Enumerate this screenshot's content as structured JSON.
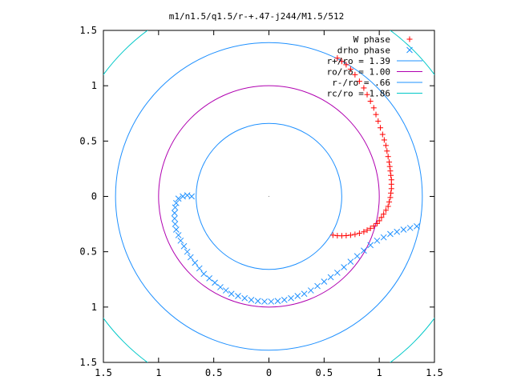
{
  "chart_data": {
    "type": "scatter",
    "title": "m1/n1.5/q1.5/r-+.47-j244/M1.5/512",
    "xlabel": "",
    "ylabel": "",
    "xlim": [
      -1.5,
      1.5
    ],
    "ylim": [
      -1.5,
      1.5
    ],
    "x_ticks": [
      -1.5,
      -1,
      -0.5,
      0,
      0.5,
      1,
      1.5
    ],
    "y_ticks": [
      -1.5,
      -1,
      -0.5,
      0,
      0.5,
      1,
      1.5
    ],
    "x_tick_labels": [
      "1.5",
      "1",
      "0.5",
      "0",
      "0.5",
      "1",
      "1.5"
    ],
    "y_tick_labels": [
      "1.5",
      "1",
      "0.5",
      "0",
      "0.5",
      "1",
      "1.5"
    ],
    "grid": false,
    "legend_position": "top-right",
    "series": [
      {
        "name": "W phase",
        "kind": "points",
        "marker": "plus",
        "color": "#ff0000",
        "points": [
          [
            0.58,
            -0.35
          ],
          [
            0.62,
            -0.355
          ],
          [
            0.66,
            -0.356
          ],
          [
            0.7,
            -0.354
          ],
          [
            0.74,
            -0.35
          ],
          [
            0.78,
            -0.343
          ],
          [
            0.82,
            -0.333
          ],
          [
            0.86,
            -0.32
          ],
          [
            0.89,
            -0.305
          ],
          [
            0.92,
            -0.288
          ],
          [
            0.95,
            -0.268
          ],
          [
            0.98,
            -0.245
          ],
          [
            1.0,
            -0.22
          ],
          [
            1.02,
            -0.19
          ],
          [
            1.04,
            -0.16
          ],
          [
            1.06,
            -0.125
          ],
          [
            1.08,
            -0.09
          ],
          [
            1.09,
            -0.05
          ],
          [
            1.1,
            -0.01
          ],
          [
            1.105,
            0.03
          ],
          [
            1.11,
            0.07
          ],
          [
            1.11,
            0.11
          ],
          [
            1.11,
            0.15
          ],
          [
            1.105,
            0.19
          ],
          [
            1.1,
            0.23
          ],
          [
            1.095,
            0.27
          ],
          [
            1.09,
            0.31
          ],
          [
            1.08,
            0.36
          ],
          [
            1.07,
            0.41
          ],
          [
            1.06,
            0.46
          ],
          [
            1.045,
            0.51
          ],
          [
            1.03,
            0.56
          ],
          [
            1.01,
            0.62
          ],
          [
            0.99,
            0.68
          ],
          [
            0.97,
            0.74
          ],
          [
            0.95,
            0.8
          ],
          [
            0.92,
            0.86
          ],
          [
            0.89,
            0.92
          ],
          [
            0.86,
            0.98
          ],
          [
            0.82,
            1.04
          ],
          [
            0.78,
            1.1
          ],
          [
            0.74,
            1.15
          ],
          [
            0.7,
            1.19
          ],
          [
            0.66,
            1.22
          ],
          [
            0.62,
            1.25
          ]
        ]
      },
      {
        "name": "drho phase",
        "kind": "points",
        "marker": "cross",
        "color": "#1e90ff",
        "points": [
          [
            -0.7,
            0.0
          ],
          [
            -0.74,
            0.01
          ],
          [
            -0.78,
            0.0
          ],
          [
            -0.82,
            -0.02
          ],
          [
            -0.84,
            -0.06
          ],
          [
            -0.85,
            -0.1
          ],
          [
            -0.855,
            -0.15
          ],
          [
            -0.855,
            -0.2
          ],
          [
            -0.85,
            -0.25
          ],
          [
            -0.84,
            -0.3
          ],
          [
            -0.82,
            -0.35
          ],
          [
            -0.8,
            -0.4
          ],
          [
            -0.77,
            -0.45
          ],
          [
            -0.74,
            -0.5
          ],
          [
            -0.71,
            -0.55
          ],
          [
            -0.67,
            -0.6
          ],
          [
            -0.63,
            -0.65
          ],
          [
            -0.59,
            -0.7
          ],
          [
            -0.54,
            -0.74
          ],
          [
            -0.49,
            -0.78
          ],
          [
            -0.44,
            -0.82
          ],
          [
            -0.39,
            -0.85
          ],
          [
            -0.34,
            -0.88
          ],
          [
            -0.28,
            -0.9
          ],
          [
            -0.22,
            -0.92
          ],
          [
            -0.16,
            -0.935
          ],
          [
            -0.1,
            -0.945
          ],
          [
            -0.04,
            -0.95
          ],
          [
            0.02,
            -0.95
          ],
          [
            0.08,
            -0.945
          ],
          [
            0.14,
            -0.935
          ],
          [
            0.2,
            -0.92
          ],
          [
            0.26,
            -0.9
          ],
          [
            0.32,
            -0.88
          ],
          [
            0.38,
            -0.85
          ],
          [
            0.44,
            -0.81
          ],
          [
            0.5,
            -0.77
          ],
          [
            0.56,
            -0.73
          ],
          [
            0.62,
            -0.69
          ],
          [
            0.68,
            -0.64
          ],
          [
            0.74,
            -0.59
          ],
          [
            0.8,
            -0.54
          ],
          [
            0.86,
            -0.49
          ],
          [
            0.92,
            -0.44
          ],
          [
            0.98,
            -0.4
          ],
          [
            1.04,
            -0.37
          ],
          [
            1.1,
            -0.34
          ],
          [
            1.16,
            -0.32
          ],
          [
            1.22,
            -0.3
          ],
          [
            1.28,
            -0.285
          ],
          [
            1.34,
            -0.27
          ]
        ]
      },
      {
        "name": "r+/ro = 1.39",
        "kind": "circle",
        "radius": 1.39,
        "color": "#1e90ff"
      },
      {
        "name": "ro/ro = 1.00",
        "kind": "circle",
        "radius": 1.0,
        "color": "#b000b0"
      },
      {
        "name": "r-/ro = .66",
        "kind": "circle",
        "radius": 0.66,
        "color": "#1e90ff"
      },
      {
        "name": "rc/ro = 1.86",
        "kind": "circle",
        "radius": 1.86,
        "color": "#00c8c8"
      }
    ]
  }
}
